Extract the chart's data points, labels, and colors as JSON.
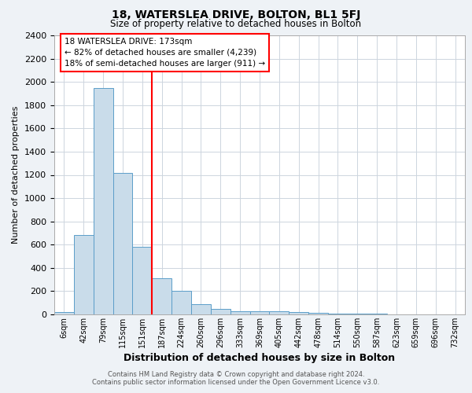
{
  "title_line1": "18, WATERSLEA DRIVE, BOLTON, BL1 5FJ",
  "title_line2": "Size of property relative to detached houses in Bolton",
  "xlabel": "Distribution of detached houses by size in Bolton",
  "ylabel": "Number of detached properties",
  "categories": [
    "6sqm",
    "42sqm",
    "79sqm",
    "115sqm",
    "151sqm",
    "187sqm",
    "224sqm",
    "260sqm",
    "296sqm",
    "333sqm",
    "369sqm",
    "405sqm",
    "442sqm",
    "478sqm",
    "514sqm",
    "550sqm",
    "587sqm",
    "623sqm",
    "659sqm",
    "696sqm",
    "732sqm"
  ],
  "values": [
    20,
    680,
    1950,
    1220,
    580,
    310,
    205,
    85,
    45,
    30,
    28,
    25,
    20,
    15,
    10,
    8,
    5,
    3,
    2,
    1,
    0
  ],
  "bar_color": "#c9dcea",
  "bar_edge_color": "#5b9ec9",
  "redline_index": 5,
  "annotation_text": "18 WATERSLEA DRIVE: 173sqm\n← 82% of detached houses are smaller (4,239)\n18% of semi-detached houses are larger (911) →",
  "ylim": [
    0,
    2400
  ],
  "yticks": [
    0,
    200,
    400,
    600,
    800,
    1000,
    1200,
    1400,
    1600,
    1800,
    2000,
    2200,
    2400
  ],
  "footer_line1": "Contains HM Land Registry data © Crown copyright and database right 2024.",
  "footer_line2": "Contains public sector information licensed under the Open Government Licence v3.0.",
  "bg_color": "#eef2f6",
  "plot_bg_color": "#ffffff",
  "grid_color": "#cdd5de"
}
